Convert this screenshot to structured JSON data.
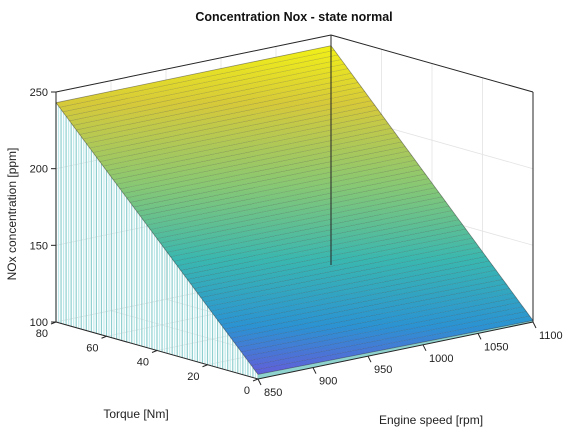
{
  "chart_data": {
    "type": "surface",
    "title": "Concentration Nox - state normal",
    "xlabel": "Engine speed [rpm]",
    "ylabel": "Torque [Nm]",
    "zlabel": "NOx concentration [ppm]",
    "xlim": [
      850,
      1100
    ],
    "ylim": [
      0,
      80
    ],
    "zlim": [
      100,
      250
    ],
    "x_ticks": [
      850,
      900,
      950,
      1000,
      1050,
      1100
    ],
    "y_ticks": [
      0,
      20,
      40,
      60,
      80
    ],
    "z_ticks": [
      100,
      150,
      200,
      250
    ],
    "x_tick_labels": [
      "850",
      "900",
      "950",
      "1000",
      "1050",
      "1100"
    ],
    "y_tick_labels": [
      "0",
      "20",
      "40",
      "60",
      "80"
    ],
    "z_tick_labels": [
      "100",
      "150",
      "200",
      "250"
    ],
    "surface_corners": [
      {
        "x": 850,
        "y": 0,
        "z": 103
      },
      {
        "x": 1100,
        "y": 0,
        "z": 101
      },
      {
        "x": 850,
        "y": 80,
        "z": 243
      },
      {
        "x": 1100,
        "y": 80,
        "z": 243
      }
    ],
    "colormap": "parula",
    "grid": true
  }
}
